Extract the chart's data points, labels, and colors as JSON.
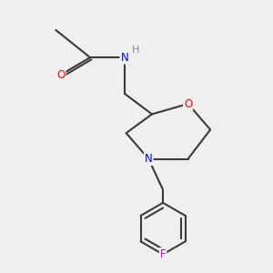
{
  "background_color": "#efefef",
  "bond_color": "#3a3a3a",
  "atom_colors": {
    "O": "#ff0000",
    "N": "#0000ff",
    "F": "#cc00cc",
    "H": "#888888",
    "C": "#3a3a3a"
  },
  "figsize": [
    3.0,
    3.0
  ],
  "dpi": 100
}
